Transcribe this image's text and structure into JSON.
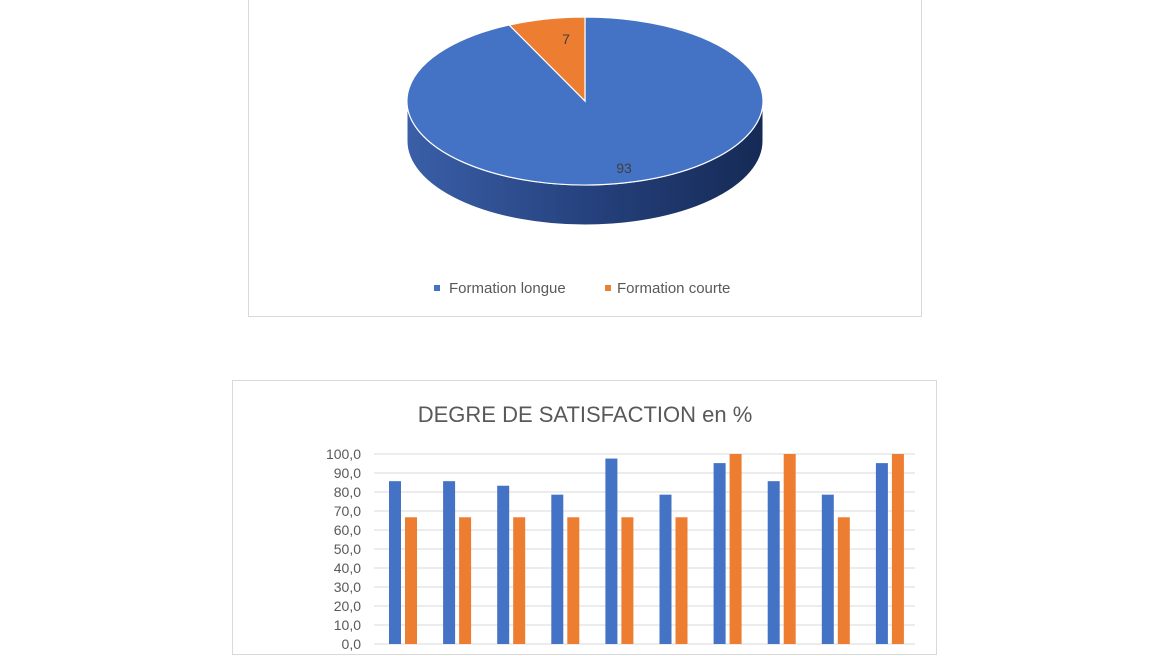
{
  "chart_data": [
    {
      "type": "pie",
      "title": "",
      "labels": [
        "Formation longue",
        "Formation courte"
      ],
      "values": [
        93,
        7
      ],
      "data_labels": [
        "93",
        "7"
      ],
      "colors": [
        "#4472c4",
        "#ed7d31"
      ],
      "style": "3d",
      "legend": "bottom"
    },
    {
      "type": "bar",
      "title": "DEGRE DE SATISFACTION  en %",
      "categories": [
        "",
        "",
        "",
        "",
        "",
        "",
        "",
        "",
        "",
        ""
      ],
      "series": [
        {
          "values": [
            85.7,
            85.7,
            83.3,
            78.6,
            97.6,
            78.6,
            95.2,
            85.7,
            78.6,
            95.2
          ],
          "color": "#4472c4"
        },
        {
          "values": [
            66.7,
            66.7,
            66.7,
            66.7,
            66.7,
            66.7,
            100.0,
            100.0,
            66.7,
            100.0
          ],
          "color": "#ed7d31"
        }
      ],
      "ylim": [
        0,
        100
      ],
      "yticks": [
        "100,0",
        "90,0",
        "80,0",
        "70,0",
        "60,0",
        "50,0",
        "40,0",
        "30,0",
        "20,0",
        "10,0",
        "0,0"
      ],
      "grid": true,
      "legend": "none"
    }
  ]
}
